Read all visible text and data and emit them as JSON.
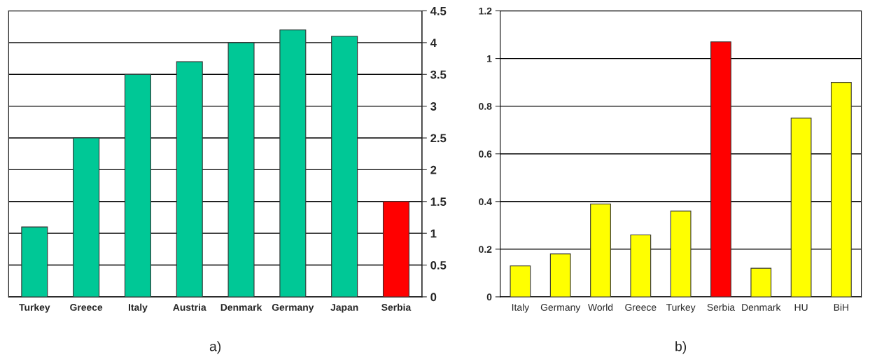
{
  "chart_data": [
    {
      "type": "bar",
      "categories": [
        "Turkey",
        "Greece",
        "Italy",
        "Austria",
        "Denmark",
        "Germany",
        "Japan",
        "Serbia"
      ],
      "series": [
        {
          "axis": "y2",
          "colors": [
            "#00c896",
            "#00c896",
            "#00c896",
            "#00c896",
            "#00c896",
            "#00c896",
            "#00c896",
            "#ff0000"
          ],
          "values": [
            1.1,
            2.5,
            3.5,
            3.7,
            4.0,
            4.2,
            4.1,
            1.5
          ]
        }
      ],
      "y2lim": [
        0,
        4.5
      ],
      "y2ticks": [
        0,
        0.5,
        1,
        1.5,
        2,
        2.5,
        3,
        3.5,
        4,
        4.5
      ],
      "grid": "y",
      "annotations": [
        "a)"
      ]
    },
    {
      "type": "bar",
      "categories": [
        "Italy",
        "Germany",
        "World",
        "Greece",
        "Turkey",
        "Serbia",
        "Denmark",
        "HU",
        "BiH"
      ],
      "series": [
        {
          "colors": [
            "#ffff00",
            "#ffff00",
            "#ffff00",
            "#ffff00",
            "#ffff00",
            "#ff0000",
            "#ffff00",
            "#ffff00",
            "#ffff00"
          ],
          "values": [
            0.13,
            0.18,
            0.39,
            0.26,
            0.36,
            1.07,
            0.12,
            0.75,
            0.9
          ]
        }
      ],
      "ylim": [
        0,
        1.2
      ],
      "yticks": [
        0,
        0.2,
        0.4,
        0.6,
        0.8,
        1,
        1.2
      ],
      "grid": "y",
      "annotations": [
        "b)"
      ]
    }
  ]
}
